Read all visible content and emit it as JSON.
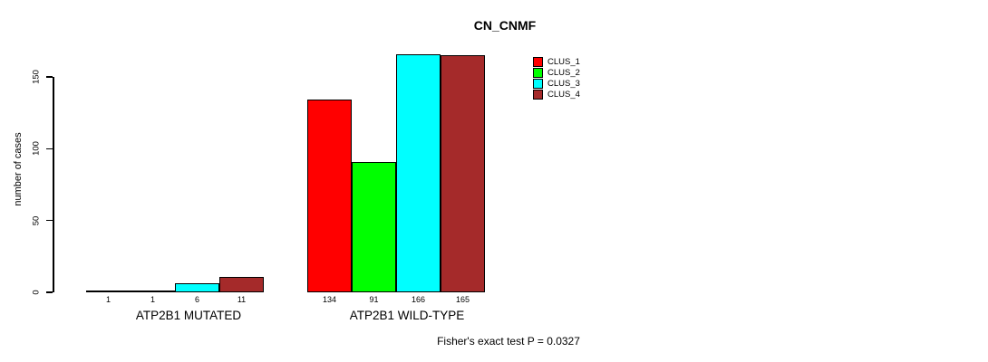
{
  "chart_data": {
    "type": "bar",
    "title": "CN_CNMF",
    "ylabel": "number of cases",
    "xlabel": "",
    "ylim": [
      0,
      150
    ],
    "yticks": [
      0,
      50,
      100,
      150
    ],
    "grid": false,
    "categories": [
      "ATP2B1 MUTATED",
      "ATP2B1 WILD-TYPE"
    ],
    "series": [
      {
        "name": "CLUS_1",
        "color": "#ff0000",
        "values": [
          1,
          134
        ]
      },
      {
        "name": "CLUS_2",
        "color": "#00ff00",
        "values": [
          1,
          91
        ]
      },
      {
        "name": "CLUS_3",
        "color": "#00ffff",
        "values": [
          6,
          166
        ]
      },
      {
        "name": "CLUS_4",
        "color": "#a52a2a",
        "values": [
          11,
          165
        ]
      }
    ],
    "legend_position": "top-right",
    "annotation": "Fisher's exact test P = 0.0327"
  }
}
